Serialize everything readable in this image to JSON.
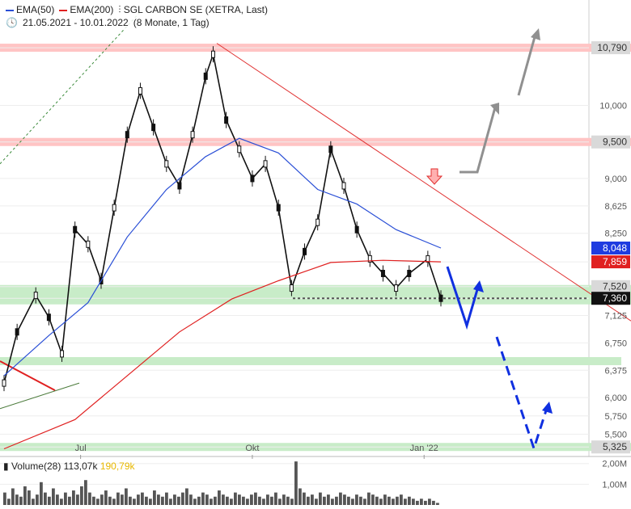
{
  "legend": {
    "ema50": "EMA(50)",
    "ema200": "EMA(200)",
    "title": "SGL CARBON SE (XETRA, Last)",
    "range": "21.05.2021 - 10.01.2022",
    "period": "(8 Monate, 1 Tag)"
  },
  "volume_legend": {
    "label": "Volume(28)",
    "value1": "113,07k",
    "value2": "190,79k"
  },
  "colors": {
    "ema50": "#2a4fd6",
    "ema200": "#e02020",
    "resistance_band": "#ffc4c4",
    "support_band": "#c8ecc8",
    "up_arrow": "#909090",
    "down_arrow": "#1030e0"
  },
  "chart_data": {
    "type": "candlestick",
    "title": "SGL CARBON SE (XETRA, Last)",
    "x_ticks": [
      "Jul",
      "Okt",
      "Jan '22"
    ],
    "y_ticks": [
      "10,790",
      "10,000",
      "9,500",
      "9,000",
      "8,625",
      "8,250",
      "7,859",
      "7,520",
      "7,360",
      "7,125",
      "6,750",
      "6,375",
      "6,000",
      "5,750",
      "5,500",
      "5,325"
    ],
    "ylim": [
      5.25,
      11.2
    ],
    "price_labels": [
      {
        "label": "10,790",
        "value": 10.79,
        "style": "gray"
      },
      {
        "label": "9,500",
        "value": 9.5,
        "style": "gray"
      },
      {
        "label": "8,048",
        "value": 8.048,
        "style": "blue"
      },
      {
        "label": "7,859",
        "value": 7.859,
        "style": "red"
      },
      {
        "label": "7,520",
        "value": 7.52,
        "style": "gray"
      },
      {
        "label": "7,360",
        "value": 7.36,
        "style": "black"
      },
      {
        "label": "5,325",
        "value": 5.325,
        "style": "gray"
      }
    ],
    "resistance_levels": [
      10.79,
      9.5
    ],
    "support_levels": [
      7.52,
      6.5,
      5.325
    ],
    "horizontal_dotted_line": 7.36,
    "price_series": [
      {
        "date": "2021-05-21",
        "close": 6.2
      },
      {
        "date": "2021-05-28",
        "close": 6.9
      },
      {
        "date": "2021-06-07",
        "close": 7.4
      },
      {
        "date": "2021-06-14",
        "close": 7.1
      },
      {
        "date": "2021-06-21",
        "close": 6.6
      },
      {
        "date": "2021-06-28",
        "close": 8.3
      },
      {
        "date": "2021-07-05",
        "close": 8.1
      },
      {
        "date": "2021-07-12",
        "close": 7.6
      },
      {
        "date": "2021-07-19",
        "close": 8.6
      },
      {
        "date": "2021-07-26",
        "close": 9.6
      },
      {
        "date": "2021-08-02",
        "close": 10.2
      },
      {
        "date": "2021-08-09",
        "close": 9.7
      },
      {
        "date": "2021-08-16",
        "close": 9.2
      },
      {
        "date": "2021-08-23",
        "close": 8.9
      },
      {
        "date": "2021-08-30",
        "close": 9.6
      },
      {
        "date": "2021-09-06",
        "close": 10.4
      },
      {
        "date": "2021-09-10",
        "close": 10.7
      },
      {
        "date": "2021-09-17",
        "close": 9.8
      },
      {
        "date": "2021-09-24",
        "close": 9.4
      },
      {
        "date": "2021-10-01",
        "close": 9.0
      },
      {
        "date": "2021-10-08",
        "close": 9.2
      },
      {
        "date": "2021-10-15",
        "close": 8.6
      },
      {
        "date": "2021-10-22",
        "close": 7.5
      },
      {
        "date": "2021-10-29",
        "close": 8.0
      },
      {
        "date": "2021-11-05",
        "close": 8.4
      },
      {
        "date": "2021-11-12",
        "close": 9.4
      },
      {
        "date": "2021-11-19",
        "close": 8.9
      },
      {
        "date": "2021-11-26",
        "close": 8.3
      },
      {
        "date": "2021-12-03",
        "close": 7.9
      },
      {
        "date": "2021-12-10",
        "close": 7.7
      },
      {
        "date": "2021-12-17",
        "close": 7.5
      },
      {
        "date": "2021-12-24",
        "close": 7.7
      },
      {
        "date": "2022-01-03",
        "close": 7.9
      },
      {
        "date": "2022-01-10",
        "close": 7.36
      }
    ],
    "series": [
      {
        "name": "EMA(50)",
        "values": [
          {
            "date": "2021-05-21",
            "value": 6.3
          },
          {
            "date": "2021-06-14",
            "value": 6.85
          },
          {
            "date": "2021-07-05",
            "value": 7.3
          },
          {
            "date": "2021-07-26",
            "value": 8.2
          },
          {
            "date": "2021-08-16",
            "value": 8.85
          },
          {
            "date": "2021-09-06",
            "value": 9.3
          },
          {
            "date": "2021-09-24",
            "value": 9.55
          },
          {
            "date": "2021-10-15",
            "value": 9.35
          },
          {
            "date": "2021-11-05",
            "value": 8.85
          },
          {
            "date": "2021-11-26",
            "value": 8.65
          },
          {
            "date": "2021-12-17",
            "value": 8.3
          },
          {
            "date": "2022-01-10",
            "value": 8.048
          }
        ]
      },
      {
        "name": "EMA(200)",
        "values": [
          {
            "date": "2021-05-21",
            "value": 5.3
          },
          {
            "date": "2021-06-28",
            "value": 5.7
          },
          {
            "date": "2021-07-26",
            "value": 6.3
          },
          {
            "date": "2021-08-23",
            "value": 6.9
          },
          {
            "date": "2021-09-20",
            "value": 7.35
          },
          {
            "date": "2021-10-15",
            "value": 7.6
          },
          {
            "date": "2021-11-12",
            "value": 7.85
          },
          {
            "date": "2021-12-10",
            "value": 7.88
          },
          {
            "date": "2022-01-10",
            "value": 7.859
          }
        ]
      }
    ],
    "volume": {
      "y_ticks": [
        "2,00M",
        "1,00M"
      ],
      "ylim": [
        0,
        2.3
      ]
    }
  }
}
